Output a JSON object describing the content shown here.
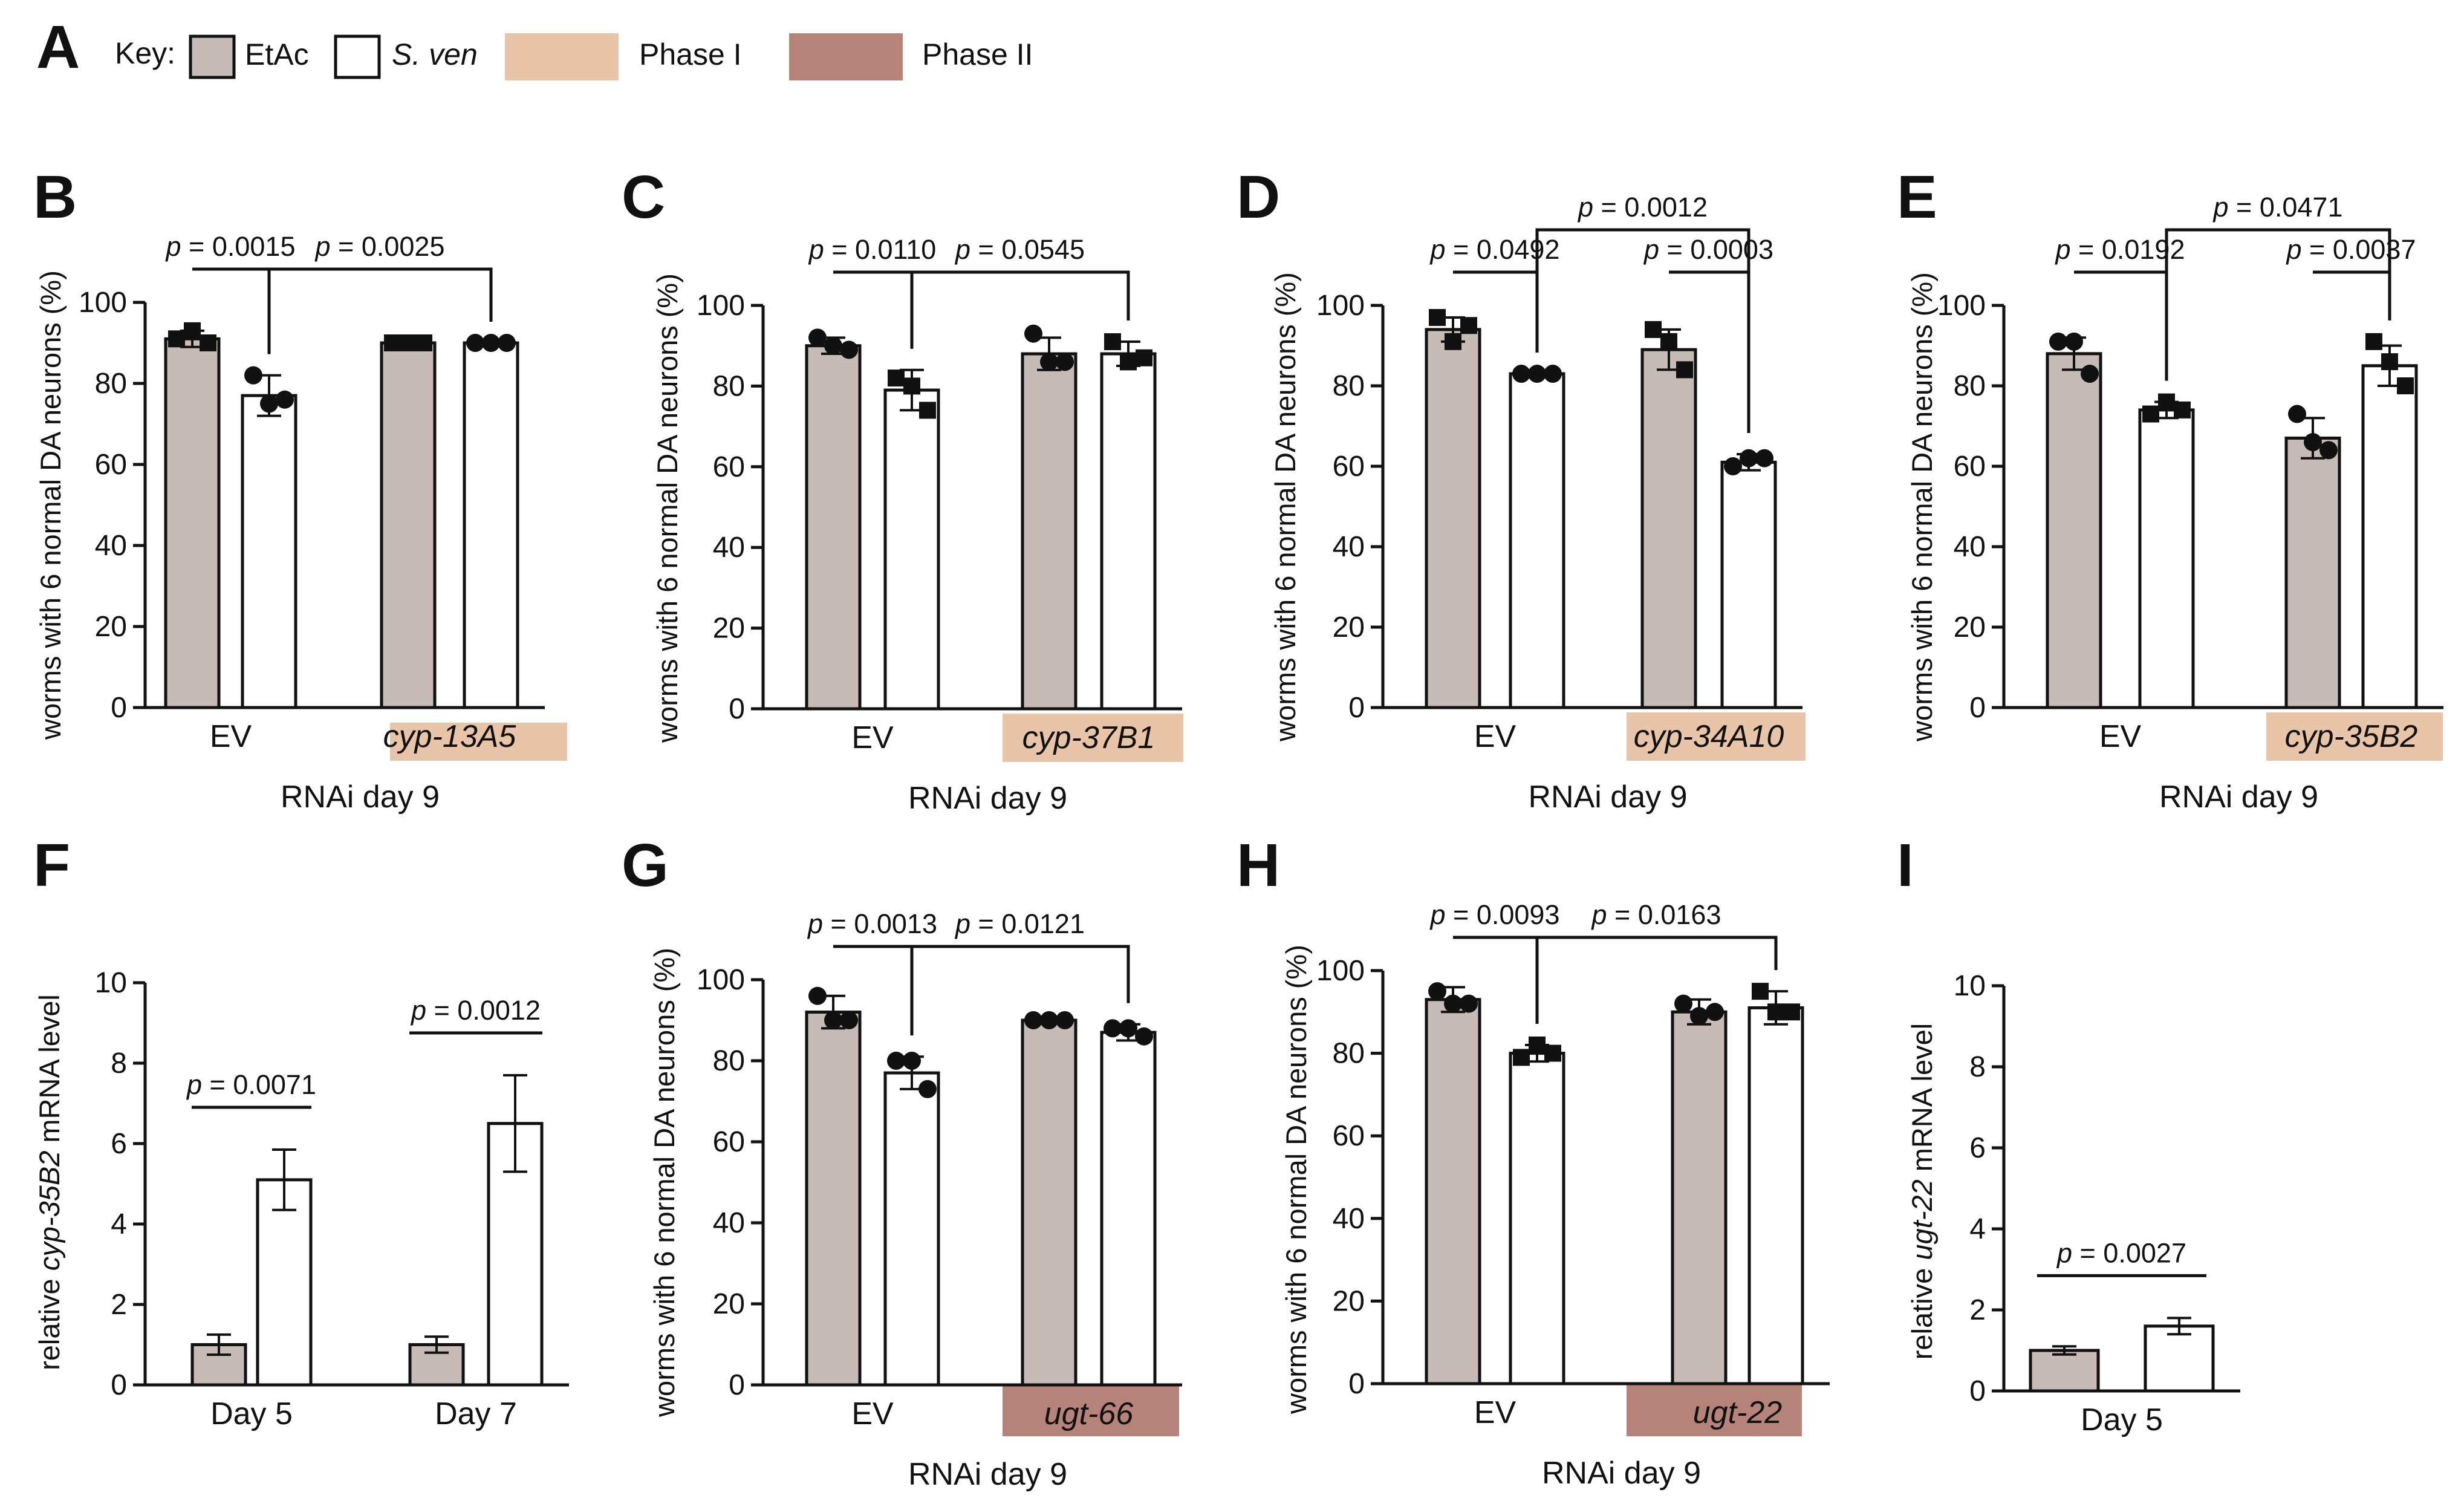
{
  "colors": {
    "etac": "#c7bbb8",
    "sven": "#ffffff",
    "phase1": "#e8c4a8",
    "phase2": "#b5837a",
    "ink": "#111111"
  },
  "key": {
    "label": "Key:",
    "items": [
      {
        "label": "EtAc",
        "italic": false,
        "swatch": "etac"
      },
      {
        "label": "S. ven",
        "italic": true,
        "swatch": "sven"
      },
      {
        "label": "Phase I",
        "italic": false,
        "swatch": "phase1"
      },
      {
        "label": "Phase II",
        "italic": false,
        "swatch": "phase2"
      }
    ]
  },
  "chart_data": [
    {
      "panel": "A",
      "type": "legend"
    },
    {
      "panel": "B",
      "type": "bar",
      "ylabel_parts": [
        {
          "t": "worms with 6 normal DA neurons (%)",
          "i": false
        }
      ],
      "xlabel": "RNAi day 9",
      "ylim": [
        0,
        100
      ],
      "yticks": [
        0,
        20,
        40,
        60,
        80,
        100
      ],
      "groups": [
        {
          "label": "EV",
          "italic": false,
          "band": null,
          "bars": [
            {
              "series": "EtAc",
              "mean": 91,
              "sd": 2,
              "points": [
                91,
                93,
                90
              ],
              "marker": "square"
            },
            {
              "series": "S. ven",
              "mean": 77,
              "sd": 5,
              "points": [
                82,
                75,
                76
              ],
              "marker": "circle"
            }
          ]
        },
        {
          "label": "cyp-13A5",
          "italic": true,
          "band": "phase1",
          "bars": [
            {
              "series": "EtAc",
              "mean": 90,
              "sd": 0,
              "points": [
                90,
                90,
                90
              ],
              "marker": "square"
            },
            {
              "series": "S. ven",
              "mean": 90,
              "sd": 0,
              "points": [
                90,
                90,
                90
              ],
              "marker": "circle"
            }
          ]
        }
      ],
      "comparisons": [
        {
          "text": "0.0015",
          "from": [
            0,
            0
          ],
          "to": [
            0,
            1
          ],
          "level": 1
        },
        {
          "text": "0.0025",
          "from": [
            0,
            1
          ],
          "to": [
            1,
            1
          ],
          "level": 1
        }
      ]
    },
    {
      "panel": "C",
      "type": "bar",
      "ylabel_parts": [
        {
          "t": "worms with 6 normal DA neurons (%)",
          "i": false
        }
      ],
      "xlabel": "RNAi day 9",
      "ylim": [
        0,
        100
      ],
      "yticks": [
        0,
        20,
        40,
        60,
        80,
        100
      ],
      "groups": [
        {
          "label": "EV",
          "italic": false,
          "band": null,
          "bars": [
            {
              "series": "EtAc",
              "mean": 90,
              "sd": 2,
              "points": [
                92,
                90,
                89
              ],
              "marker": "circle"
            },
            {
              "series": "S. ven",
              "mean": 79,
              "sd": 5,
              "points": [
                82,
                80,
                74
              ],
              "marker": "square"
            }
          ]
        },
        {
          "label": "cyp-37B1",
          "italic": true,
          "band": "phase1",
          "bars": [
            {
              "series": "EtAc",
              "mean": 88,
              "sd": 4,
              "points": [
                93,
                86,
                86
              ],
              "marker": "circle"
            },
            {
              "series": "S. ven",
              "mean": 88,
              "sd": 3,
              "points": [
                91,
                86,
                87
              ],
              "marker": "square"
            }
          ]
        }
      ],
      "comparisons": [
        {
          "text": "0.0110",
          "from": [
            0,
            0
          ],
          "to": [
            0,
            1
          ],
          "level": 1
        },
        {
          "text": "0.0545",
          "from": [
            0,
            1
          ],
          "to": [
            1,
            1
          ],
          "level": 1
        }
      ]
    },
    {
      "panel": "D",
      "type": "bar",
      "ylabel_parts": [
        {
          "t": "worms with 6 normal DA neurons (%)",
          "i": false
        }
      ],
      "xlabel": "RNAi day 9",
      "ylim": [
        0,
        100
      ],
      "yticks": [
        0,
        20,
        40,
        60,
        80,
        100
      ],
      "groups": [
        {
          "label": "EV",
          "italic": false,
          "band": null,
          "bars": [
            {
              "series": "EtAc",
              "mean": 94,
              "sd": 3,
              "points": [
                97,
                91,
                95
              ],
              "marker": "square"
            },
            {
              "series": "S. ven",
              "mean": 83,
              "sd": 0,
              "points": [
                83,
                83,
                83
              ],
              "marker": "circle"
            }
          ]
        },
        {
          "label": "cyp-34A10",
          "italic": true,
          "band": "phase1",
          "bars": [
            {
              "series": "EtAc",
              "mean": 89,
              "sd": 5,
              "points": [
                94,
                91,
                84
              ],
              "marker": "square"
            },
            {
              "series": "S. ven",
              "mean": 61,
              "sd": 2,
              "points": [
                60,
                62,
                62
              ],
              "marker": "circle"
            }
          ]
        }
      ],
      "comparisons": [
        {
          "text": "0.0492",
          "from": [
            0,
            0
          ],
          "to": [
            0,
            1
          ],
          "level": 1
        },
        {
          "text": "0.0003",
          "from": [
            1,
            0
          ],
          "to": [
            1,
            1
          ],
          "level": 1
        },
        {
          "text": "0.0012",
          "from": [
            0,
            1
          ],
          "to": [
            1,
            1
          ],
          "level": 2
        }
      ]
    },
    {
      "panel": "E",
      "type": "bar",
      "ylabel_parts": [
        {
          "t": "worms with 6 normal DA neurons (%)",
          "i": false
        }
      ],
      "xlabel": "RNAi day 9",
      "ylim": [
        0,
        100
      ],
      "yticks": [
        0,
        20,
        40,
        60,
        80,
        100
      ],
      "groups": [
        {
          "label": "EV",
          "italic": false,
          "band": null,
          "bars": [
            {
              "series": "EtAc",
              "mean": 88,
              "sd": 4,
              "points": [
                91,
                91,
                83
              ],
              "marker": "circle"
            },
            {
              "series": "S. ven",
              "mean": 74,
              "sd": 2,
              "points": [
                73,
                76,
                74
              ],
              "marker": "square"
            }
          ]
        },
        {
          "label": "cyp-35B2",
          "italic": true,
          "band": "phase1",
          "bars": [
            {
              "series": "EtAc",
              "mean": 67,
              "sd": 5,
              "points": [
                73,
                66,
                64
              ],
              "marker": "circle"
            },
            {
              "series": "S. ven",
              "mean": 85,
              "sd": 5,
              "points": [
                91,
                86,
                80
              ],
              "marker": "square"
            }
          ]
        }
      ],
      "comparisons": [
        {
          "text": "0.0192",
          "from": [
            0,
            0
          ],
          "to": [
            0,
            1
          ],
          "level": 1
        },
        {
          "text": "0.0037",
          "from": [
            1,
            0
          ],
          "to": [
            1,
            1
          ],
          "level": 1
        },
        {
          "text": "0.0471",
          "from": [
            0,
            1
          ],
          "to": [
            1,
            1
          ],
          "level": 2
        }
      ]
    },
    {
      "panel": "F",
      "type": "bar",
      "ylabel_parts": [
        {
          "t": "relative ",
          "i": false
        },
        {
          "t": "cyp-35B2",
          "i": true
        },
        {
          "t": " mRNA level",
          "i": false
        }
      ],
      "xlabel": "",
      "ylim": [
        0,
        10
      ],
      "yticks": [
        0,
        2,
        4,
        6,
        8,
        10
      ],
      "groups": [
        {
          "label": "Day 5",
          "italic": false,
          "band": null,
          "bars": [
            {
              "series": "EtAc",
              "mean": 1.0,
              "sd": 0.25,
              "points": []
            },
            {
              "series": "S. ven",
              "mean": 5.1,
              "sd": 0.75,
              "points": []
            }
          ]
        },
        {
          "label": "Day 7",
          "italic": false,
          "band": null,
          "bars": [
            {
              "series": "EtAc",
              "mean": 1.0,
              "sd": 0.2,
              "points": []
            },
            {
              "series": "S. ven",
              "mean": 6.5,
              "sd": 1.2,
              "points": []
            }
          ]
        }
      ],
      "comparisons": [
        {
          "text": "0.0071",
          "from": [
            0,
            0
          ],
          "to": [
            0,
            1
          ],
          "level": 1,
          "nobracket": true
        },
        {
          "text": "0.0012",
          "from": [
            1,
            0
          ],
          "to": [
            1,
            1
          ],
          "level": 1,
          "nobracket": true
        }
      ]
    },
    {
      "panel": "G",
      "type": "bar",
      "ylabel_parts": [
        {
          "t": "worms with 6 normal DA neurons (%)",
          "i": false
        }
      ],
      "xlabel": "RNAi day 9",
      "ylim": [
        0,
        100
      ],
      "yticks": [
        0,
        20,
        40,
        60,
        80,
        100
      ],
      "groups": [
        {
          "label": "EV",
          "italic": false,
          "band": null,
          "bars": [
            {
              "series": "EtAc",
              "mean": 92,
              "sd": 4,
              "points": [
                96,
                90,
                90
              ],
              "marker": "circle"
            },
            {
              "series": "S. ven",
              "mean": 77,
              "sd": 4,
              "points": [
                80,
                80,
                73
              ],
              "marker": "circle"
            }
          ]
        },
        {
          "label": "ugt-66",
          "italic": true,
          "band": "phase2",
          "bars": [
            {
              "series": "EtAc",
              "mean": 90,
              "sd": 0,
              "points": [
                90,
                90,
                90
              ],
              "marker": "circle"
            },
            {
              "series": "S. ven",
              "mean": 87,
              "sd": 2,
              "points": [
                88,
                88,
                86
              ],
              "marker": "circle"
            }
          ]
        }
      ],
      "comparisons": [
        {
          "text": "0.0013",
          "from": [
            0,
            0
          ],
          "to": [
            0,
            1
          ],
          "level": 1
        },
        {
          "text": "0.0121",
          "from": [
            0,
            1
          ],
          "to": [
            1,
            1
          ],
          "level": 1
        }
      ]
    },
    {
      "panel": "H",
      "type": "bar",
      "ylabel_parts": [
        {
          "t": "worms with 6 normal DA neurons (%)",
          "i": false
        }
      ],
      "xlabel": "RNAi day 9",
      "ylim": [
        0,
        100
      ],
      "yticks": [
        0,
        20,
        40,
        60,
        80,
        100
      ],
      "groups": [
        {
          "label": "EV",
          "italic": false,
          "band": null,
          "bars": [
            {
              "series": "EtAc",
              "mean": 93,
              "sd": 3,
              "points": [
                95,
                92,
                92
              ],
              "marker": "circle"
            },
            {
              "series": "S. ven",
              "mean": 80,
              "sd": 2,
              "points": [
                79,
                82,
                80
              ],
              "marker": "square"
            }
          ]
        },
        {
          "label": "ugt-22",
          "italic": true,
          "band": "phase2",
          "bars": [
            {
              "series": "EtAc",
              "mean": 90,
              "sd": 3,
              "points": [
                92,
                89,
                90
              ],
              "marker": "circle"
            },
            {
              "series": "S. ven",
              "mean": 91,
              "sd": 4,
              "points": [
                95,
                90,
                90
              ],
              "marker": "square"
            }
          ]
        }
      ],
      "comparisons": [
        {
          "text": "0.0093",
          "from": [
            0,
            0
          ],
          "to": [
            0,
            1
          ],
          "level": 1
        },
        {
          "text": "0.0163",
          "from": [
            0,
            1
          ],
          "to": [
            1,
            1
          ],
          "level": 1
        }
      ]
    },
    {
      "panel": "I",
      "type": "bar",
      "ylabel_parts": [
        {
          "t": "relative ",
          "i": false
        },
        {
          "t": "ugt-22",
          "i": true
        },
        {
          "t": " mRNA level",
          "i": false
        }
      ],
      "xlabel": "",
      "ylim": [
        0,
        10
      ],
      "yticks": [
        0,
        2,
        4,
        6,
        8,
        10
      ],
      "groups": [
        {
          "label": "Day 5",
          "italic": false,
          "band": null,
          "bars": [
            {
              "series": "EtAc",
              "mean": 1.0,
              "sd": 0.1,
              "points": []
            },
            {
              "series": "S. ven",
              "mean": 1.6,
              "sd": 0.2,
              "points": []
            }
          ]
        }
      ],
      "comparisons": [
        {
          "text": "0.0027",
          "from": [
            0,
            0
          ],
          "to": [
            0,
            1
          ],
          "level": 1,
          "nobracket": true
        }
      ]
    }
  ]
}
